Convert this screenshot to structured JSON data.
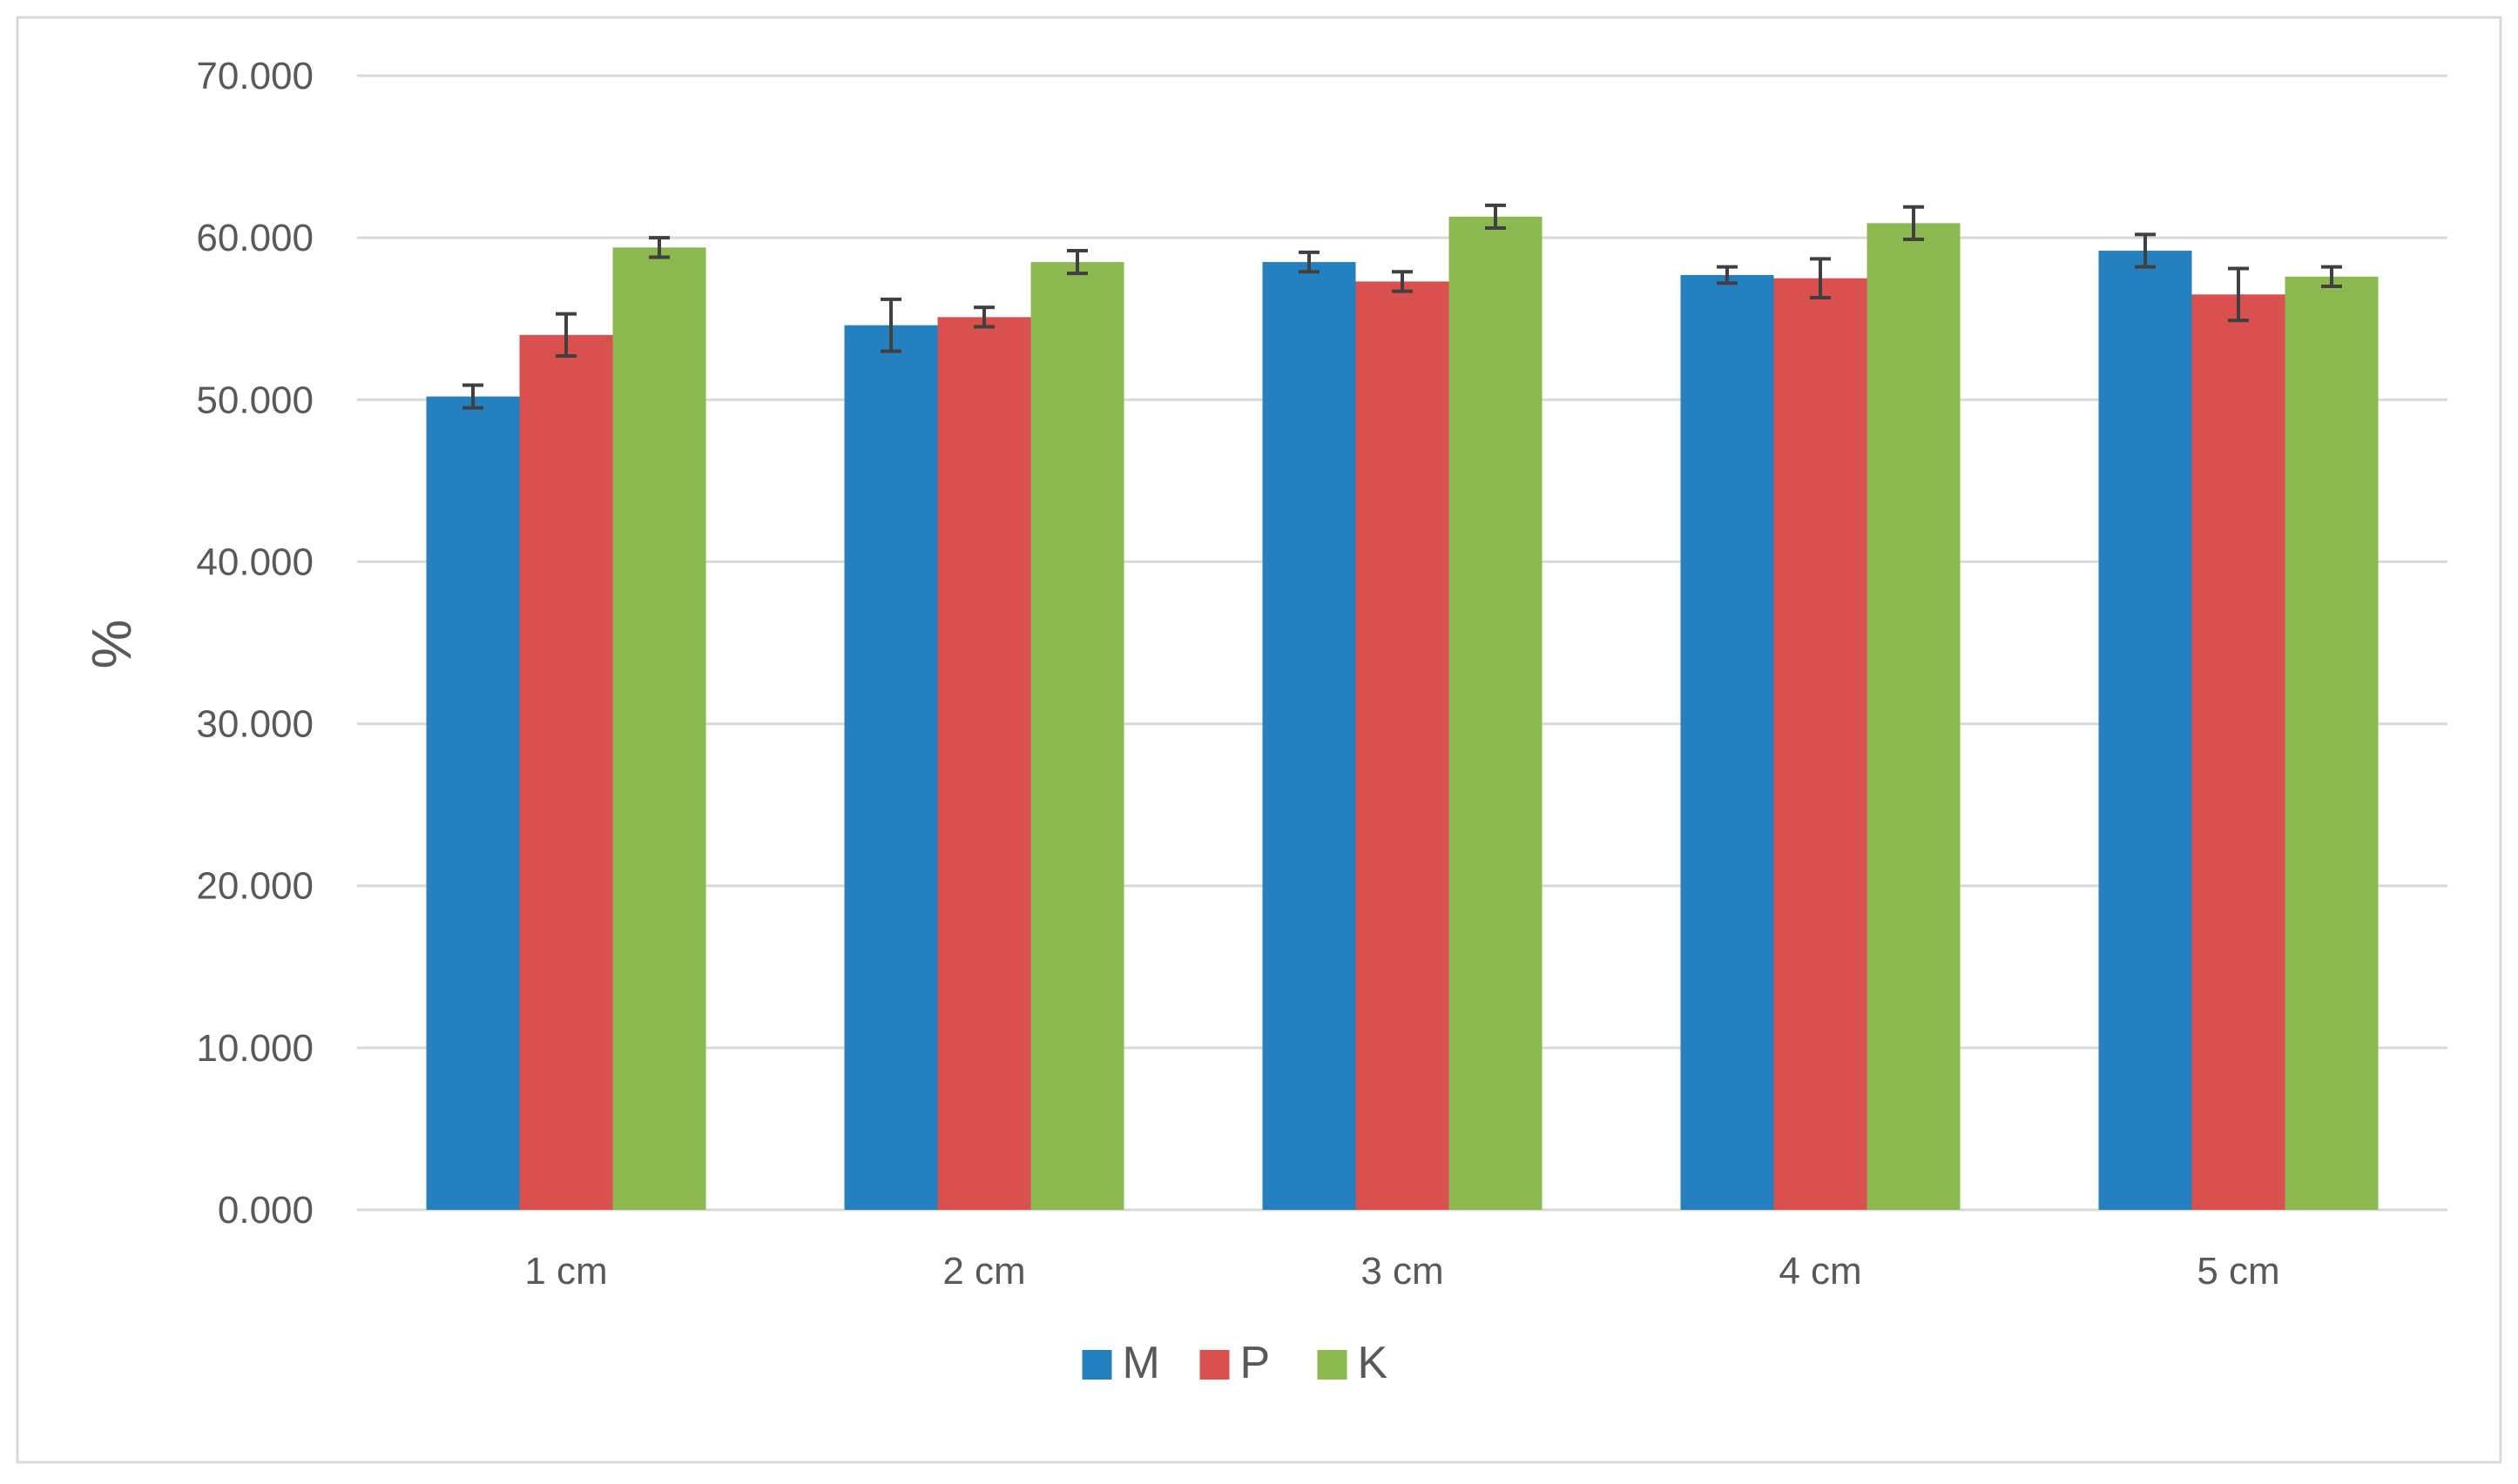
{
  "chart_data": {
    "type": "bar",
    "title": "",
    "xlabel": "",
    "ylabel": "%",
    "categories": [
      "1 cm",
      "2 cm",
      "3 cm",
      "4 cm",
      "5 cm"
    ],
    "ylim": [
      0,
      70
    ],
    "y_ticks": [
      "0.000",
      "10.000",
      "20.000",
      "30.000",
      "40.000",
      "50.000",
      "60.000",
      "70.000"
    ],
    "grid": true,
    "legend_position": "bottom",
    "series": [
      {
        "name": "M",
        "color": "#2580C0",
        "values": [
          50.2,
          54.6,
          58.5,
          57.7,
          59.2
        ],
        "errors": [
          0.7,
          1.6,
          0.6,
          0.5,
          1.0
        ]
      },
      {
        "name": "P",
        "color": "#D9504E",
        "values": [
          54.0,
          55.1,
          57.3,
          57.5,
          56.5
        ],
        "errors": [
          1.3,
          0.6,
          0.6,
          1.2,
          1.6
        ]
      },
      {
        "name": "K",
        "color": "#8BB94F",
        "values": [
          59.4,
          58.5,
          61.3,
          60.9,
          57.6
        ],
        "errors": [
          0.6,
          0.7,
          0.7,
          1.0,
          0.6
        ]
      }
    ]
  }
}
